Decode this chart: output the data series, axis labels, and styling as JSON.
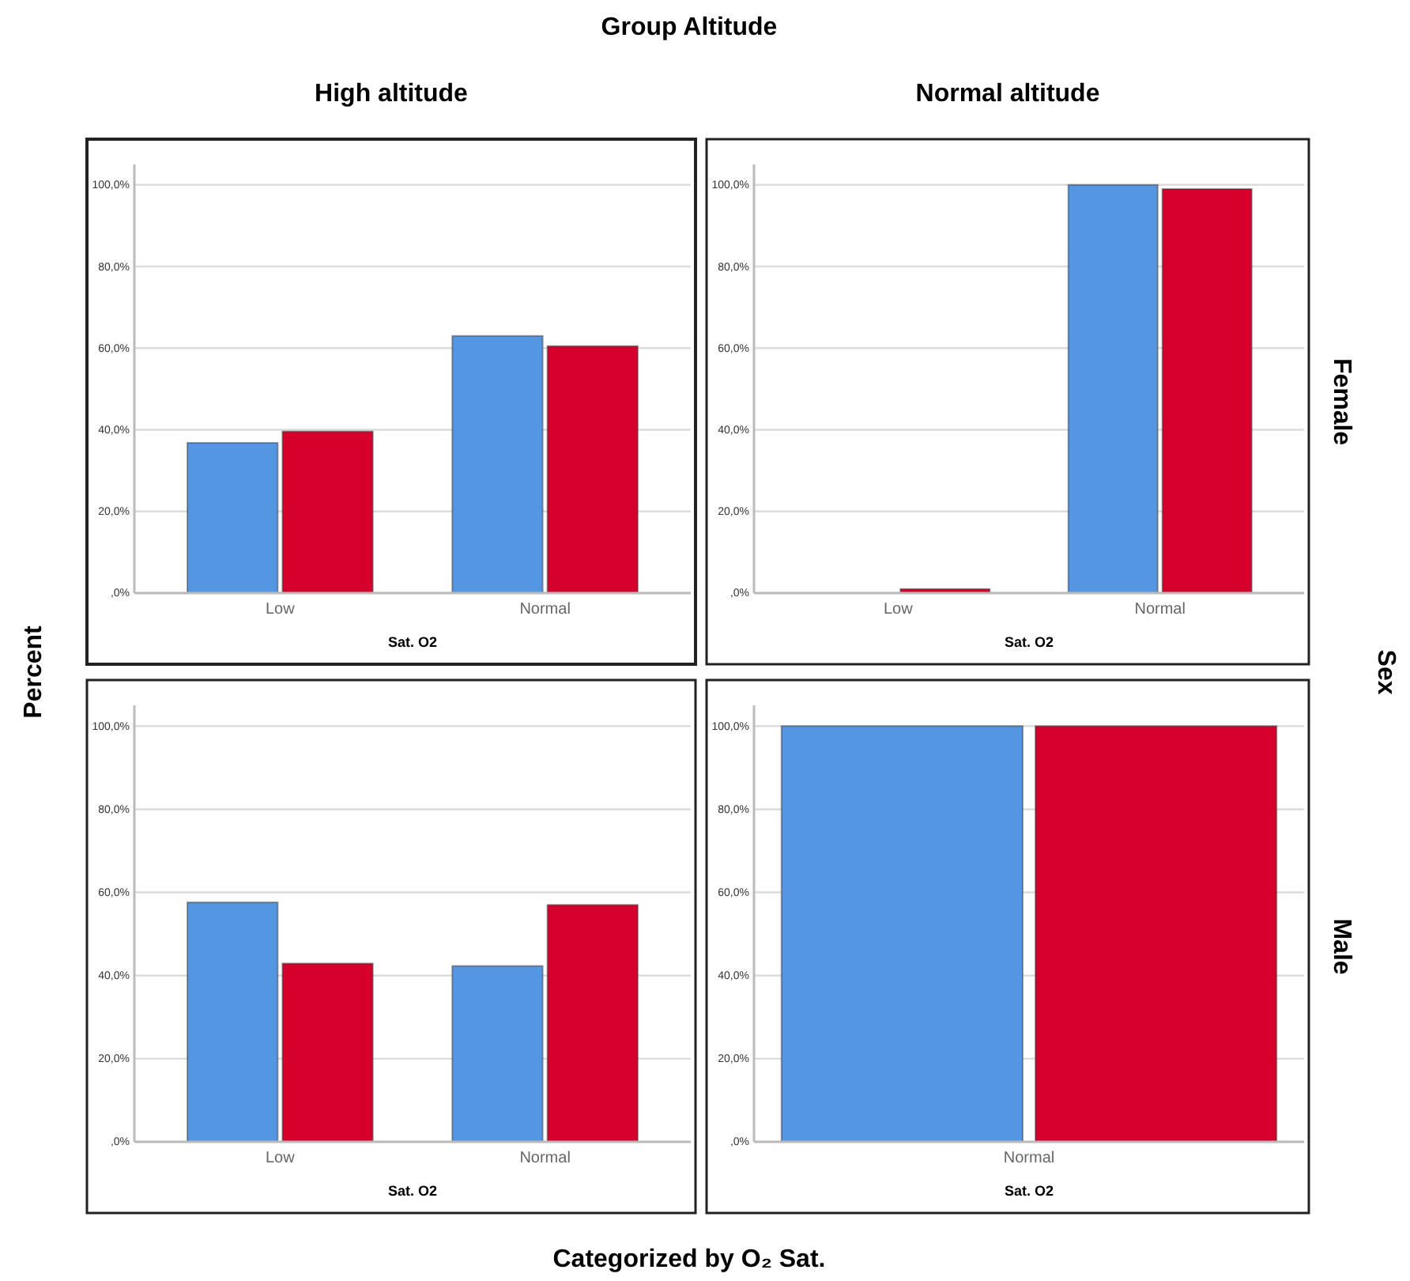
{
  "chart_data": [
    {
      "type": "bar",
      "title": "High altitude",
      "ylabel": "Percent",
      "xlabel": "Sat. O2",
      "annotations": [
        "Group Altitude",
        "Categorized by O₂ Sat."
      ],
      "categories": [
        "Low",
        "Normal"
      ],
      "series": [
        {
          "color": "#5596e3",
          "values": [
            36.8,
            63.0
          ]
        },
        {
          "color": "#d5002c",
          "values": [
            39.6,
            60.5
          ]
        }
      ],
      "ylim": [
        0,
        105
      ],
      "yticks": [
        {
          "value": 0,
          "label": ",0%"
        },
        {
          "value": 20,
          "label": "20,0%"
        },
        {
          "value": 40,
          "label": "40,0%"
        },
        {
          "value": 60,
          "label": "60,0%"
        },
        {
          "value": 80,
          "label": "80,0%"
        },
        {
          "value": 100,
          "label": "100,0%"
        }
      ],
      "grid": "y"
    },
    {
      "type": "bar",
      "title": "Normal altitude",
      "y2label": "Female",
      "xlabel": "Sat. O2",
      "annotations": [
        "Sex"
      ],
      "categories": [
        "Low",
        "Normal"
      ],
      "series": [
        {
          "color": "#5596e3",
          "values": [
            0,
            100
          ]
        },
        {
          "color": "#d5002c",
          "values": [
            1.0,
            99.0
          ]
        }
      ],
      "ylim": [
        0,
        105
      ],
      "yticks": [
        {
          "value": 0,
          "label": ",0%"
        },
        {
          "value": 20,
          "label": "20,0%"
        },
        {
          "value": 40,
          "label": "40,0%"
        },
        {
          "value": 60,
          "label": "60,0%"
        },
        {
          "value": 80,
          "label": "80,0%"
        },
        {
          "value": 100,
          "label": "100,0%"
        }
      ],
      "grid": "y"
    },
    {
      "type": "bar",
      "xlabel": "Sat. O2",
      "categories": [
        "Low",
        "Normal"
      ],
      "series": [
        {
          "color": "#5596e3",
          "values": [
            57.6,
            42.3
          ]
        },
        {
          "color": "#d5002c",
          "values": [
            42.9,
            57.0
          ]
        }
      ],
      "ylim": [
        0,
        105
      ],
      "yticks": [
        {
          "value": 0,
          "label": ",0%"
        },
        {
          "value": 20,
          "label": "20,0%"
        },
        {
          "value": 40,
          "label": "40,0%"
        },
        {
          "value": 60,
          "label": "60,0%"
        },
        {
          "value": 80,
          "label": "80,0%"
        },
        {
          "value": 100,
          "label": "100,0%"
        }
      ],
      "grid": "y"
    },
    {
      "type": "bar",
      "y2label": "Male",
      "xlabel": "Sat. O2",
      "categories": [
        "Normal"
      ],
      "series": [
        {
          "color": "#5596e3",
          "values": [
            100
          ]
        },
        {
          "color": "#d5002c",
          "values": [
            100
          ]
        }
      ],
      "ylim": [
        0,
        105
      ],
      "yticks": [
        {
          "value": 0,
          "label": ",0%"
        },
        {
          "value": 20,
          "label": "20,0%"
        },
        {
          "value": 40,
          "label": "40,0%"
        },
        {
          "value": 60,
          "label": "60,0%"
        },
        {
          "value": 80,
          "label": "80,0%"
        },
        {
          "value": 100,
          "label": "100,0%"
        }
      ],
      "grid": "y"
    }
  ]
}
